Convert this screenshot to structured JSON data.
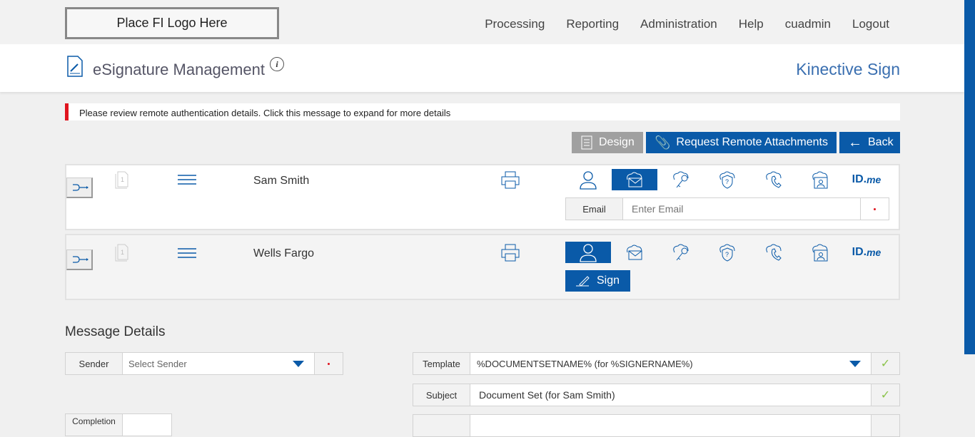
{
  "logo": "Place FI Logo Here",
  "nav": [
    "Processing",
    "Reporting",
    "Administration",
    "Help",
    "cuadmin",
    "Logout"
  ],
  "header": {
    "title": "eSignature Management",
    "brand": "Kinective Sign",
    "info": "i"
  },
  "alert": "Please review remote authentication details. Click this message to expand for more details",
  "toolbar": {
    "design": "Design",
    "attachments": "Request Remote Attachments",
    "back": "Back"
  },
  "signers": [
    {
      "name": "Sam Smith",
      "page": "1",
      "selected_auth": "email",
      "email_label": "Email",
      "email_placeholder": "Enter Email"
    },
    {
      "name": "Wells Fargo",
      "page": "1",
      "selected_auth": "in-person",
      "sign_label": "Sign"
    }
  ],
  "idme": {
    "a": "ID.",
    "b": "me"
  },
  "message": {
    "heading": "Message Details",
    "sender_label": "Sender",
    "sender_placeholder": "Select Sender",
    "template_label": "Template",
    "template_value": "%DOCUMENTSETNAME% (for %SIGNERNAME%)",
    "subject_label": "Subject",
    "subject_value": "Document Set (for Sam Smith)",
    "completion_label": "Completion"
  },
  "colors": {
    "accent": "#0a5aa8",
    "alert": "#e0141e"
  }
}
